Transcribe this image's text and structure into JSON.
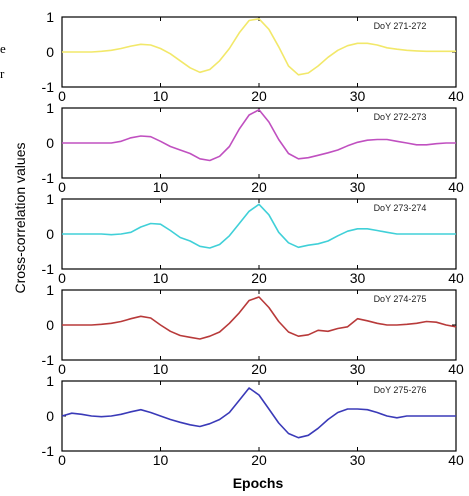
{
  "left_edge_fragments": [
    "e",
    "r"
  ],
  "chart_data": {
    "type": "line",
    "ylabel": "Cross-correlation values",
    "xlabel": "Epochs",
    "xlim": [
      0,
      40
    ],
    "ylim": [
      -1,
      1
    ],
    "xticks": [
      0,
      10,
      20,
      30,
      40
    ],
    "yticks": [
      -1,
      0,
      1
    ],
    "grid": false,
    "panels": [
      {
        "name": "DoY 271-272",
        "color": "#f2e86a",
        "x": [
          0,
          1,
          2,
          3,
          4,
          5,
          6,
          7,
          8,
          9,
          10,
          11,
          12,
          13,
          14,
          15,
          16,
          17,
          18,
          19,
          20,
          21,
          22,
          23,
          24,
          25,
          26,
          27,
          28,
          29,
          30,
          31,
          32,
          33,
          34,
          35,
          36,
          37,
          38,
          39,
          40
        ],
        "y": [
          0,
          0,
          0,
          0,
          0.02,
          0.05,
          0.1,
          0.17,
          0.22,
          0.2,
          0.1,
          -0.05,
          -0.25,
          -0.45,
          -0.58,
          -0.5,
          -0.25,
          0.1,
          0.55,
          0.9,
          0.95,
          0.65,
          0.15,
          -0.4,
          -0.65,
          -0.6,
          -0.4,
          -0.15,
          0.05,
          0.18,
          0.25,
          0.25,
          0.2,
          0.12,
          0.08,
          0.05,
          0.03,
          0.02,
          0.02,
          0.02,
          0.02
        ]
      },
      {
        "name": "DoY 272-273",
        "color": "#c050c0",
        "x": [
          0,
          1,
          2,
          3,
          4,
          5,
          6,
          7,
          8,
          9,
          10,
          11,
          12,
          13,
          14,
          15,
          16,
          17,
          18,
          19,
          20,
          21,
          22,
          23,
          24,
          25,
          26,
          27,
          28,
          29,
          30,
          31,
          32,
          33,
          34,
          35,
          36,
          37,
          38,
          39,
          40
        ],
        "y": [
          0,
          0,
          0,
          0,
          0,
          0,
          0.05,
          0.15,
          0.2,
          0.18,
          0.05,
          -0.1,
          -0.2,
          -0.3,
          -0.45,
          -0.5,
          -0.38,
          -0.1,
          0.4,
          0.8,
          0.95,
          0.6,
          0.1,
          -0.3,
          -0.45,
          -0.42,
          -0.35,
          -0.28,
          -0.2,
          -0.08,
          0.02,
          0.08,
          0.1,
          0.1,
          0.05,
          0,
          -0.05,
          -0.05,
          -0.02,
          0,
          0
        ]
      },
      {
        "name": "DoY 273-274",
        "color": "#40d0d8",
        "x": [
          0,
          1,
          2,
          3,
          4,
          5,
          6,
          7,
          8,
          9,
          10,
          11,
          12,
          13,
          14,
          15,
          16,
          17,
          18,
          19,
          20,
          21,
          22,
          23,
          24,
          25,
          26,
          27,
          28,
          29,
          30,
          31,
          32,
          33,
          34,
          35,
          36,
          37,
          38,
          39,
          40
        ],
        "y": [
          0,
          0,
          0,
          0,
          0,
          -0.02,
          0,
          0.05,
          0.2,
          0.3,
          0.28,
          0.1,
          -0.1,
          -0.2,
          -0.35,
          -0.4,
          -0.3,
          -0.05,
          0.3,
          0.65,
          0.85,
          0.55,
          0.05,
          -0.25,
          -0.38,
          -0.32,
          -0.28,
          -0.2,
          -0.05,
          0.08,
          0.15,
          0.15,
          0.1,
          0.05,
          0,
          0,
          0,
          0,
          0,
          0,
          0
        ]
      },
      {
        "name": "DoY 274-275",
        "color": "#b83a3a",
        "x": [
          0,
          1,
          2,
          3,
          4,
          5,
          6,
          7,
          8,
          9,
          10,
          11,
          12,
          13,
          14,
          15,
          16,
          17,
          18,
          19,
          20,
          21,
          22,
          23,
          24,
          25,
          26,
          27,
          28,
          29,
          30,
          31,
          32,
          33,
          34,
          35,
          36,
          37,
          38,
          39,
          40
        ],
        "y": [
          0,
          0,
          0,
          0,
          0.02,
          0.05,
          0.1,
          0.18,
          0.25,
          0.2,
          0,
          -0.18,
          -0.3,
          -0.35,
          -0.4,
          -0.32,
          -0.2,
          0.05,
          0.35,
          0.7,
          0.8,
          0.5,
          0.1,
          -0.2,
          -0.32,
          -0.28,
          -0.15,
          -0.18,
          -0.1,
          -0.05,
          0.18,
          0.12,
          0.05,
          0,
          0,
          0.02,
          0.05,
          0.1,
          0.08,
          0,
          -0.05
        ]
      },
      {
        "name": "DoY 275-276",
        "color": "#3a3ab8",
        "x": [
          0,
          1,
          2,
          3,
          4,
          5,
          6,
          7,
          8,
          9,
          10,
          11,
          12,
          13,
          14,
          15,
          16,
          17,
          18,
          19,
          20,
          21,
          22,
          23,
          24,
          25,
          26,
          27,
          28,
          29,
          30,
          31,
          32,
          33,
          34,
          35,
          36,
          37,
          38,
          39,
          40
        ],
        "y": [
          0,
          0.08,
          0.05,
          0,
          -0.02,
          0,
          0.05,
          0.12,
          0.18,
          0.1,
          0,
          -0.1,
          -0.18,
          -0.25,
          -0.3,
          -0.22,
          -0.1,
          0.1,
          0.45,
          0.8,
          0.6,
          0.2,
          -0.2,
          -0.5,
          -0.62,
          -0.55,
          -0.35,
          -0.1,
          0.1,
          0.2,
          0.2,
          0.18,
          0.1,
          0,
          -0.05,
          0,
          0,
          0,
          0,
          0,
          0
        ]
      }
    ]
  }
}
